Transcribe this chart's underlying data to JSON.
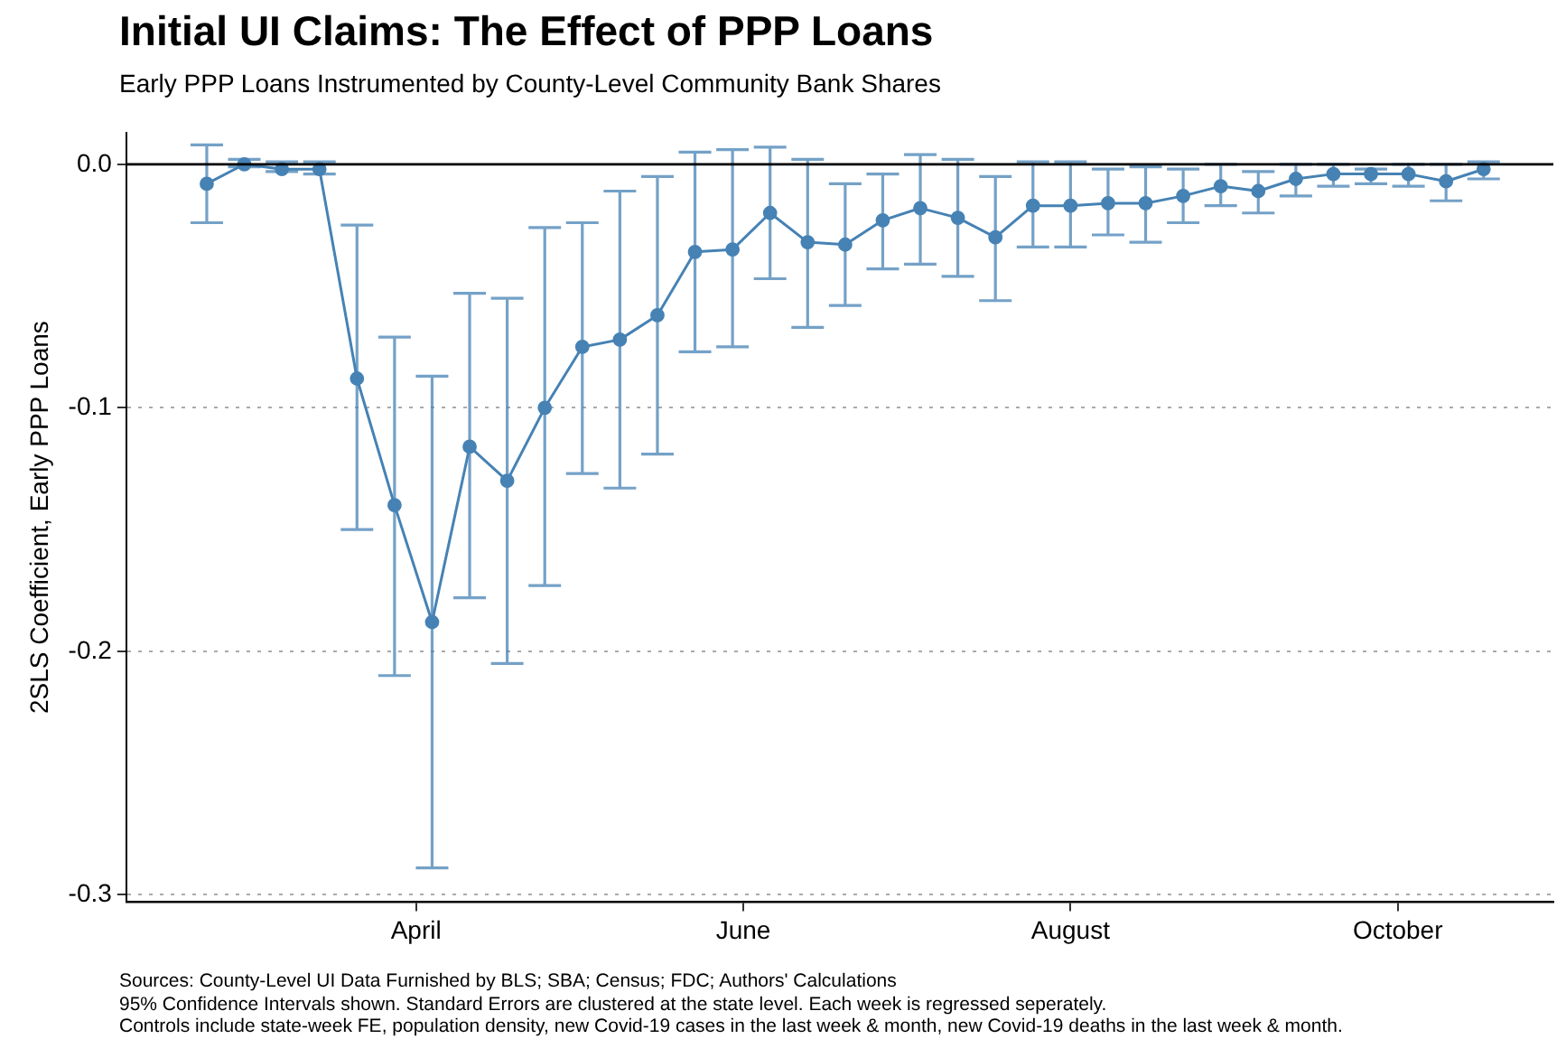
{
  "chart_data": {
    "type": "line",
    "title": "Initial UI Claims: The Effect of PPP Loans",
    "subtitle": "Early PPP Loans Instrumented by County-Level Community Bank Shares",
    "ylabel": "2SLS Coefficient, Early PPP Loans",
    "x": [
      "--02-22",
      "--02-29",
      "--03-07",
      "--03-14",
      "--03-21",
      "--03-28",
      "--04-04",
      "--04-11",
      "--04-18",
      "--04-25",
      "--05-02",
      "--05-09",
      "--05-16",
      "--05-23",
      "--05-30",
      "--06-06",
      "--06-13",
      "--06-20",
      "--06-27",
      "--07-04",
      "--07-11",
      "--07-18",
      "--07-25",
      "--08-01",
      "--08-08",
      "--08-15",
      "--08-22",
      "--08-29",
      "--09-05",
      "--09-12",
      "--09-19",
      "--09-26",
      "--10-03",
      "--10-10",
      "--10-17"
    ],
    "values": [
      -0.008,
      0.0,
      -0.002,
      -0.002,
      -0.088,
      -0.14,
      -0.188,
      -0.116,
      -0.13,
      -0.1,
      -0.075,
      -0.072,
      -0.062,
      -0.036,
      -0.035,
      -0.02,
      -0.032,
      -0.033,
      -0.023,
      -0.018,
      -0.022,
      -0.03,
      -0.017,
      -0.017,
      -0.016,
      -0.016,
      -0.013,
      -0.009,
      -0.011,
      -0.006,
      -0.004,
      -0.004,
      -0.004,
      -0.007,
      -0.002
    ],
    "errors": [
      [
        -0.024,
        0.008
      ],
      [
        -0.001,
        0.002
      ],
      [
        -0.003,
        0.001
      ],
      [
        -0.004,
        0.001
      ],
      [
        -0.15,
        -0.025
      ],
      [
        -0.21,
        -0.071
      ],
      [
        -0.289,
        -0.087
      ],
      [
        -0.178,
        -0.053
      ],
      [
        -0.205,
        -0.055
      ],
      [
        -0.173,
        -0.026
      ],
      [
        -0.127,
        -0.024
      ],
      [
        -0.133,
        -0.011
      ],
      [
        -0.119,
        -0.005
      ],
      [
        -0.077,
        0.005
      ],
      [
        -0.075,
        0.006
      ],
      [
        -0.047,
        0.007
      ],
      [
        -0.067,
        0.002
      ],
      [
        -0.058,
        -0.008
      ],
      [
        -0.043,
        -0.004
      ],
      [
        -0.041,
        0.004
      ],
      [
        -0.046,
        0.002
      ],
      [
        -0.056,
        -0.005
      ],
      [
        -0.034,
        0.001
      ],
      [
        -0.034,
        0.001
      ],
      [
        -0.029,
        -0.002
      ],
      [
        -0.032,
        -0.001
      ],
      [
        -0.024,
        -0.002
      ],
      [
        -0.017,
        0.0
      ],
      [
        -0.02,
        -0.003
      ],
      [
        -0.013,
        0.0
      ],
      [
        -0.009,
        0.0
      ],
      [
        -0.008,
        -0.002
      ],
      [
        -0.009,
        0.0
      ],
      [
        -0.015,
        0.0
      ],
      [
        -0.006,
        0.001
      ]
    ],
    "color": "#4682b4",
    "marker": "circle",
    "line_style": "solid",
    "xlim": [
      "--02-07",
      "--10-30"
    ],
    "xticks": [
      {
        "value": "--04-01",
        "label": "April"
      },
      {
        "value": "--06-01",
        "label": "June"
      },
      {
        "value": "--08-01",
        "label": "August"
      },
      {
        "value": "--10-01",
        "label": "October"
      }
    ],
    "ylim": [
      -0.303,
      0.013
    ],
    "yticks": [
      {
        "value": -0.3,
        "label": "-0.3"
      },
      {
        "value": -0.2,
        "label": "-0.2"
      },
      {
        "value": -0.1,
        "label": "-0.1"
      },
      {
        "value": 0,
        "label": "0.0"
      }
    ],
    "grid": "y",
    "legend": false,
    "ref_lines": [
      {
        "axis": "y",
        "value": 0,
        "color": "#000000"
      }
    ],
    "annotations": [
      "Sources: County-Level UI Data Furnished by BLS; SBA; Census; FDC; Authors' Calculations",
      "95% Confidence Intervals shown. Standard Errors are clustered at the state level. Each week is regressed seperately.",
      "Controls include state-week FE, population density, new Covid-19 cases in the last week & month, new Covid-19 deaths in the last week & month."
    ]
  }
}
